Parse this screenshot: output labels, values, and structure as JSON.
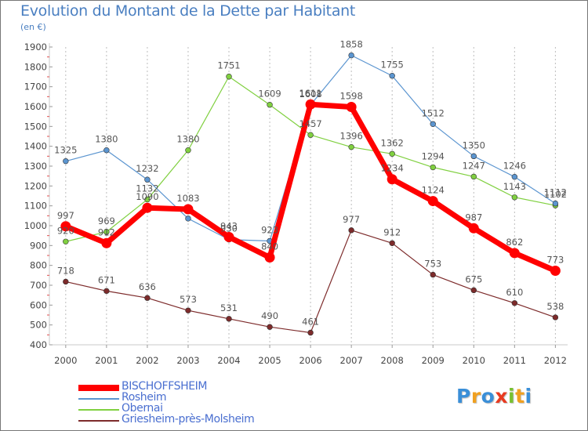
{
  "chart_data": {
    "type": "line",
    "title": "Evolution du Montant de la Dette par Habitant",
    "subtitle": "(en €)",
    "xlabel": "",
    "ylabel": "",
    "x": [
      "2000",
      "2001",
      "2002",
      "2003",
      "2004",
      "2005",
      "2006",
      "2007",
      "2008",
      "2009",
      "2010",
      "2011",
      "2012"
    ],
    "ylim": [
      400,
      1900
    ],
    "yticks": [
      400,
      500,
      600,
      700,
      800,
      900,
      1000,
      1100,
      1200,
      1300,
      1400,
      1500,
      1600,
      1700,
      1800,
      1900
    ],
    "grid": "vertical",
    "legend_position": "bottom-left",
    "series": [
      {
        "name": "BISCHOFFSHEIM",
        "color": "#ff0000",
        "values": [
          997,
          912,
          1090,
          1083,
          943,
          840,
          1611,
          1598,
          1234,
          1124,
          987,
          862,
          773
        ],
        "labels": [
          "997",
          "912",
          "1090",
          "1083",
          "943",
          "840",
          "1611",
          "1598",
          "1234",
          "1124",
          "987",
          "862",
          "773"
        ]
      },
      {
        "name": "Rosheim",
        "color": "#5b95d0",
        "values": [
          1325,
          1380,
          1232,
          1036,
          930,
          923,
          1608,
          1858,
          1755,
          1512,
          1350,
          1246,
          1112
        ],
        "labels": [
          "1325",
          "1380",
          "1232",
          "",
          "930",
          "923",
          "1608",
          "1858",
          "1755",
          "1512",
          "1350",
          "1246",
          "1112"
        ]
      },
      {
        "name": "Obernai",
        "color": "#80d040",
        "values": [
          920,
          969,
          1132,
          1380,
          1751,
          1609,
          1457,
          1396,
          1362,
          1294,
          1247,
          1143,
          1102
        ],
        "labels": [
          "920",
          "969",
          "1132",
          "1380",
          "1751",
          "1609",
          "1457",
          "1396",
          "1362",
          "1294",
          "1247",
          "1143",
          "1102"
        ]
      },
      {
        "name": "Griesheim-près-Molsheim",
        "color": "#7d2b2b",
        "values": [
          718,
          671,
          636,
          573,
          531,
          490,
          461,
          977,
          912,
          753,
          675,
          610,
          538
        ],
        "labels": [
          "718",
          "671",
          "636",
          "573",
          "531",
          "490",
          "461",
          "977",
          "912",
          "753",
          "675",
          "610",
          "538"
        ]
      }
    ]
  },
  "branding": {
    "logo_letters": [
      {
        "char": "P",
        "color": "#3a8fd8"
      },
      {
        "char": "r",
        "color": "#f0a020"
      },
      {
        "char": "o",
        "color": "#3a8fd8"
      },
      {
        "char": "x",
        "color": "#e83a20"
      },
      {
        "char": "i",
        "color": "#78c030"
      },
      {
        "char": "t",
        "color": "#f0a020"
      },
      {
        "char": "i",
        "color": "#3a8fd8"
      }
    ]
  }
}
